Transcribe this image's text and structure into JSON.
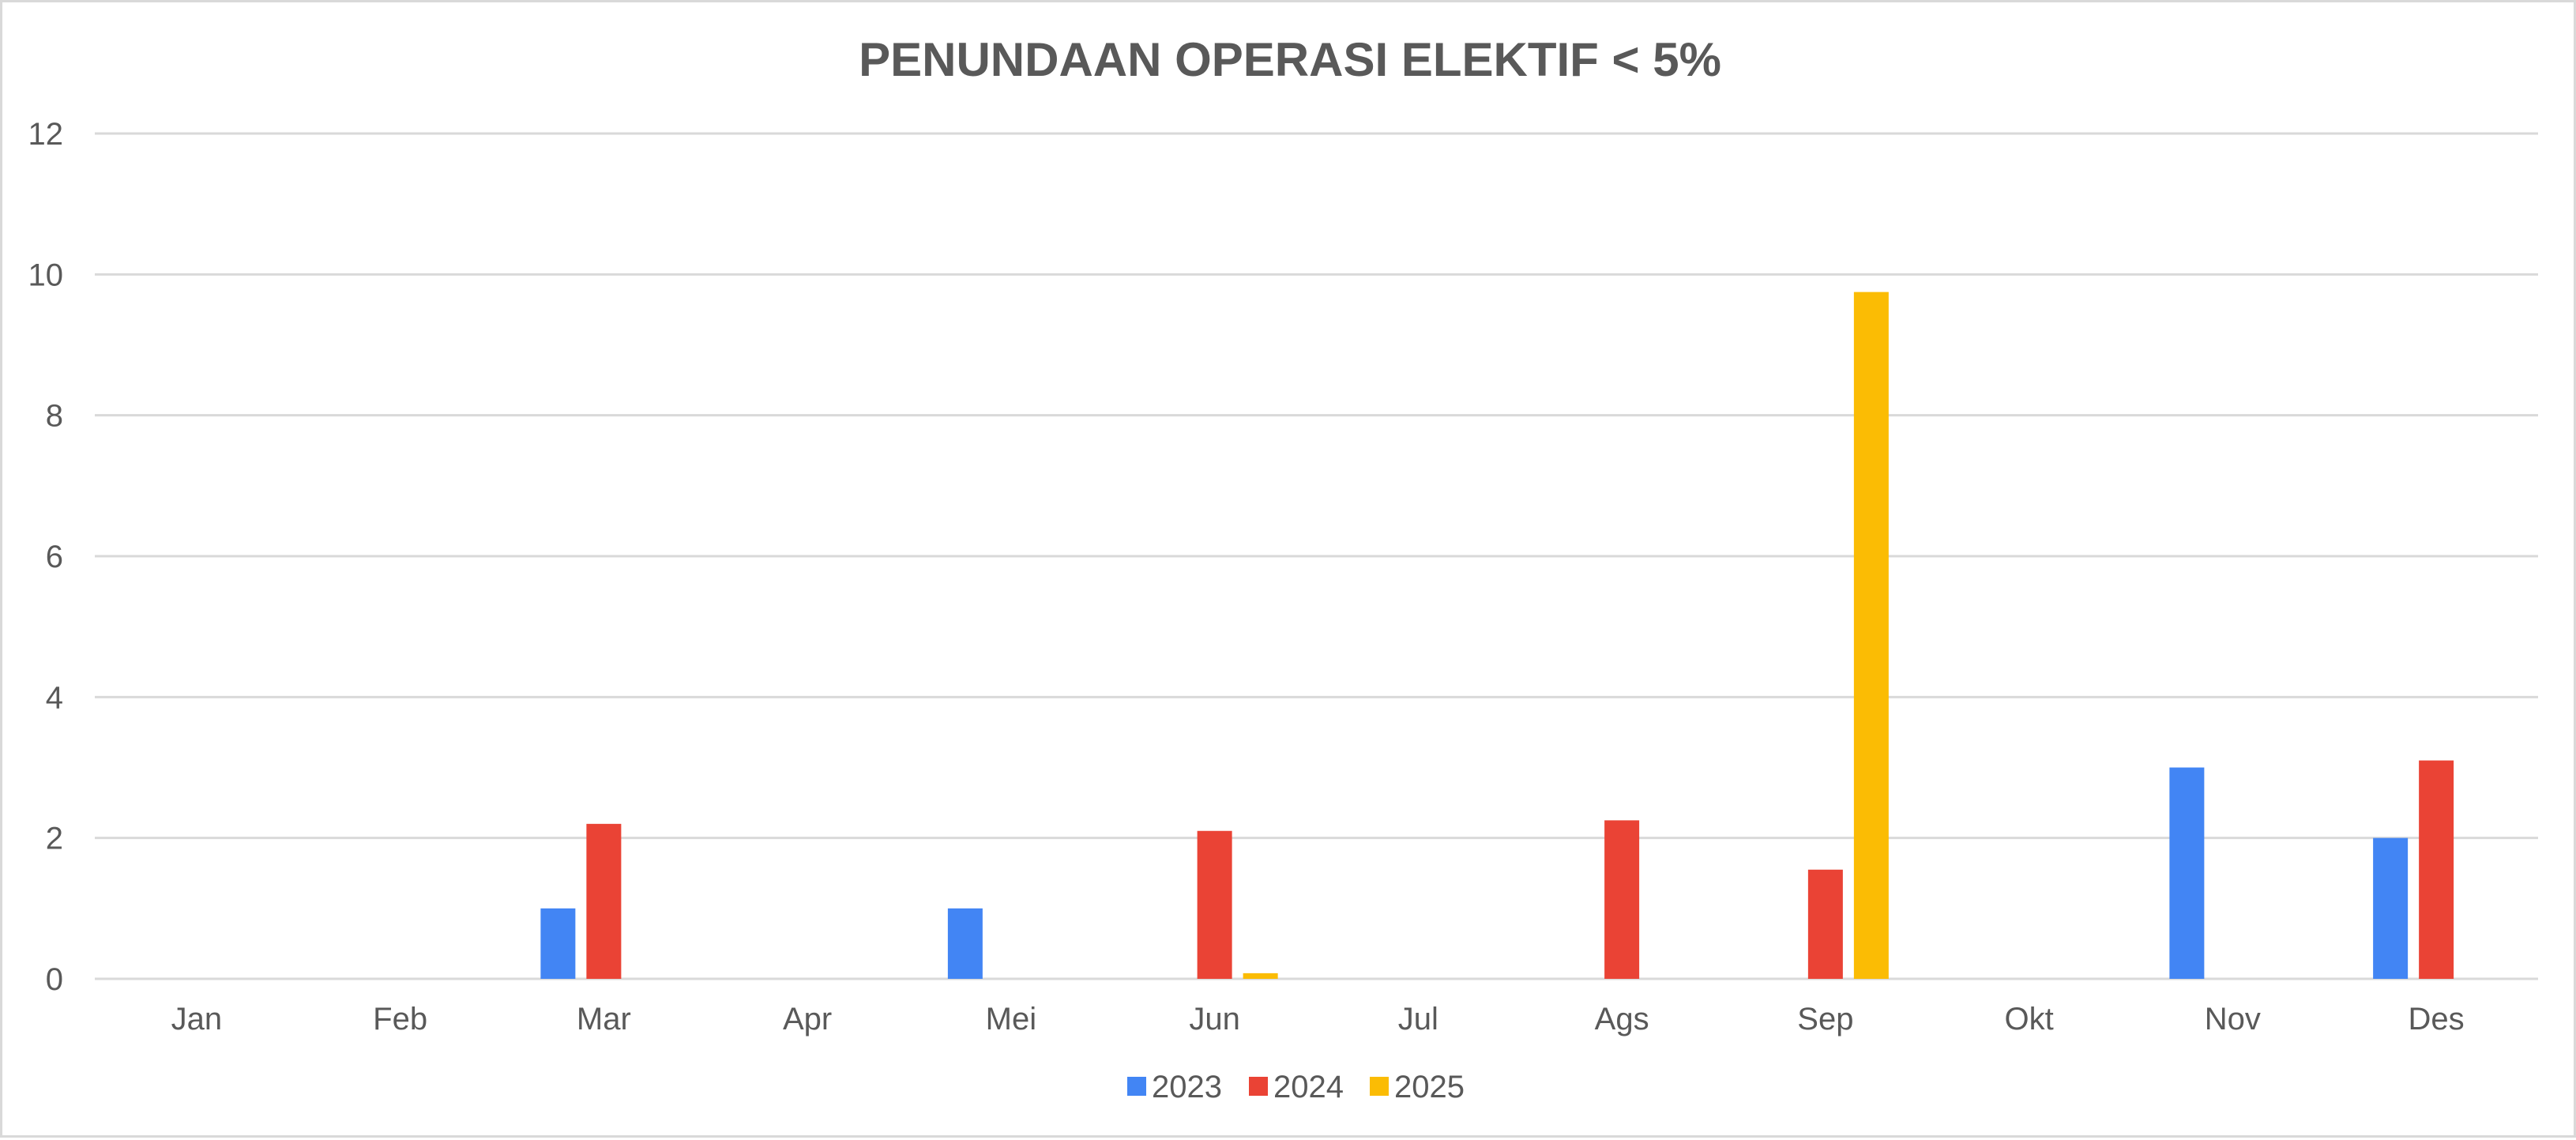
{
  "chart_data": {
    "type": "bar",
    "title": "PENUNDAAN OPERASI ELEKTIF < 5%",
    "categories": [
      "Jan",
      "Feb",
      "Mar",
      "Apr",
      "Mei",
      "Jun",
      "Jul",
      "Ags",
      "Sep",
      "Okt",
      "Nov",
      "Des"
    ],
    "series": [
      {
        "name": "2023",
        "color": "#4285F4",
        "values": [
          0,
          0,
          1,
          0,
          1,
          0,
          0,
          0,
          0,
          0,
          3,
          2
        ]
      },
      {
        "name": "2024",
        "color": "#EA4335",
        "values": [
          0,
          0,
          2.2,
          0,
          0,
          2.1,
          0,
          2.25,
          1.55,
          0,
          0,
          3.1
        ]
      },
      {
        "name": "2025",
        "color": "#FBBC04",
        "values": [
          0,
          0,
          0,
          0,
          0,
          0.08,
          0,
          0,
          9.75,
          0,
          0,
          0
        ]
      }
    ],
    "ylim": [
      0,
      12
    ],
    "yticks": [
      0,
      2,
      4,
      6,
      8,
      10,
      12
    ],
    "grid": true,
    "legend_position": "bottom"
  }
}
